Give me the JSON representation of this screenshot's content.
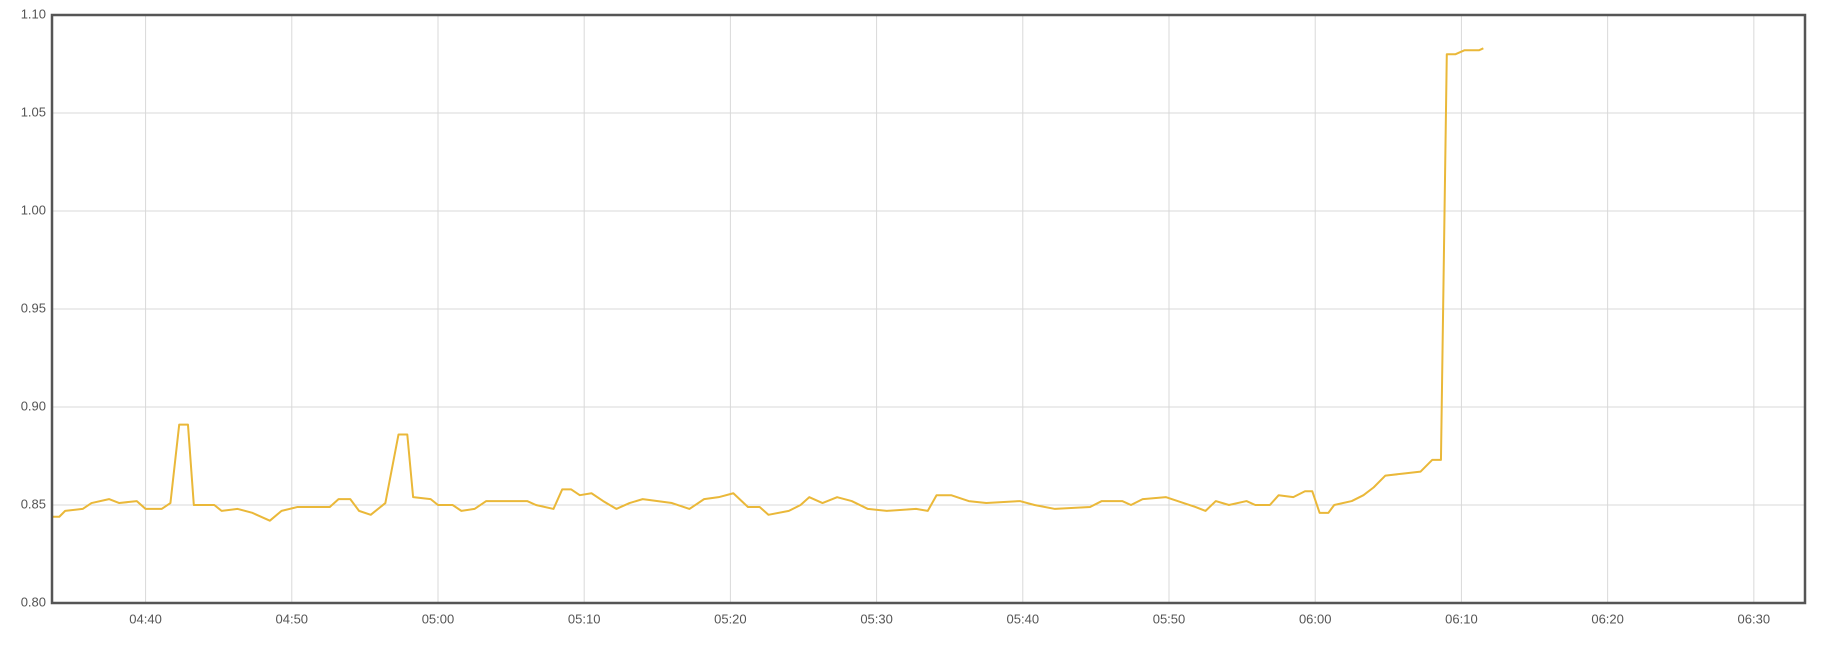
{
  "chart_data": {
    "type": "line",
    "x": [
      273.6,
      274.1,
      274.5,
      275.7,
      276.3,
      277.5,
      278.2,
      279.4,
      280.0,
      281.1,
      281.7,
      282.3,
      282.9,
      283.3,
      284.7,
      285.2,
      286.3,
      287.3,
      288.5,
      289.3,
      290.4,
      292.6,
      293.2,
      294.0,
      294.6,
      295.4,
      296.4,
      297.3,
      297.9,
      298.3,
      299.5,
      300.0,
      301.0,
      301.6,
      302.5,
      303.3,
      306.1,
      306.7,
      307.9,
      308.5,
      309.1,
      309.7,
      310.5,
      311.3,
      312.2,
      313.1,
      314.0,
      316.0,
      317.2,
      318.2,
      319.2,
      320.2,
      321.2,
      322.0,
      322.6,
      324.0,
      324.8,
      325.4,
      326.3,
      327.3,
      328.3,
      329.4,
      330.7,
      332.7,
      333.5,
      334.1,
      335.1,
      336.3,
      337.5,
      339.8,
      340.8,
      342.2,
      344.6,
      345.4,
      346.8,
      347.4,
      348.2,
      349.8,
      351.0,
      351.8,
      352.5,
      353.2,
      354.1,
      355.3,
      355.9,
      356.9,
      357.5,
      358.5,
      359.3,
      359.8,
      360.3,
      360.9,
      361.3,
      362.5,
      363.3,
      364.0,
      364.8,
      366.0,
      367.2,
      368.0,
      368.6,
      369.0,
      369.6,
      370.2,
      371.2,
      371.5
    ],
    "series": [
      {
        "color": "#eab839",
        "values": [
          0.844,
          0.844,
          0.847,
          0.848,
          0.851,
          0.853,
          0.851,
          0.852,
          0.848,
          0.848,
          0.851,
          0.891,
          0.891,
          0.85,
          0.85,
          0.847,
          0.848,
          0.846,
          0.842,
          0.847,
          0.849,
          0.849,
          0.853,
          0.853,
          0.847,
          0.845,
          0.851,
          0.886,
          0.886,
          0.854,
          0.853,
          0.85,
          0.85,
          0.847,
          0.848,
          0.852,
          0.852,
          0.85,
          0.848,
          0.858,
          0.858,
          0.855,
          0.856,
          0.852,
          0.848,
          0.851,
          0.853,
          0.851,
          0.848,
          0.853,
          0.854,
          0.856,
          0.849,
          0.849,
          0.845,
          0.847,
          0.85,
          0.854,
          0.851,
          0.854,
          0.852,
          0.848,
          0.847,
          0.848,
          0.847,
          0.855,
          0.855,
          0.852,
          0.851,
          0.852,
          0.85,
          0.848,
          0.849,
          0.852,
          0.852,
          0.85,
          0.853,
          0.854,
          0.851,
          0.849,
          0.847,
          0.852,
          0.85,
          0.852,
          0.85,
          0.85,
          0.855,
          0.854,
          0.857,
          0.857,
          0.846,
          0.846,
          0.85,
          0.852,
          0.855,
          0.859,
          0.865,
          0.866,
          0.867,
          0.873,
          0.873,
          1.08,
          1.08,
          1.082,
          1.082,
          1.083
        ]
      }
    ],
    "xlim": [
      273.6,
      393.5
    ],
    "xticks": [
      {
        "value": 280,
        "label": "04:40"
      },
      {
        "value": 290,
        "label": "04:50"
      },
      {
        "value": 300,
        "label": "05:00"
      },
      {
        "value": 310,
        "label": "05:10"
      },
      {
        "value": 320,
        "label": "05:20"
      },
      {
        "value": 330,
        "label": "05:30"
      },
      {
        "value": 340,
        "label": "05:40"
      },
      {
        "value": 350,
        "label": "05:50"
      },
      {
        "value": 360,
        "label": "06:00"
      },
      {
        "value": 370,
        "label": "06:10"
      },
      {
        "value": 380,
        "label": "06:20"
      },
      {
        "value": 390,
        "label": "06:30"
      }
    ],
    "ylim": [
      0.8,
      1.1
    ],
    "yticks": [
      {
        "value": 0.8,
        "label": "0.80"
      },
      0.85,
      {
        "value": 0.9,
        "label": "0.90"
      },
      0.95,
      {
        "value": 1.0,
        "label": "1.00"
      },
      1.05,
      {
        "value": 1.1,
        "label": "1.10"
      }
    ],
    "grid": true
  }
}
